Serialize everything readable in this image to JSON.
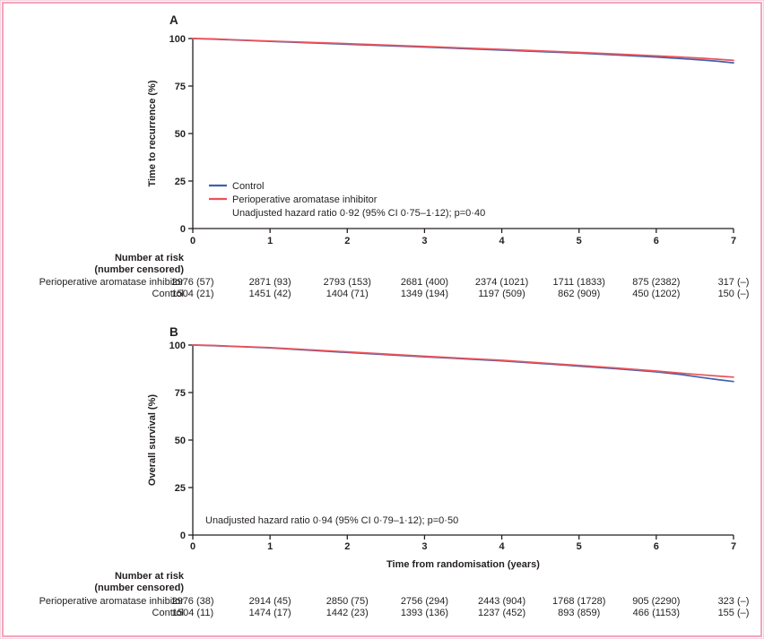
{
  "figure": {
    "frame_color": "#efa6bc",
    "frame_color_light": "#f8d3de",
    "ink_color": "#231f20",
    "background_color": "#ffffff",
    "risk_table_header_line1": "Number at risk",
    "risk_table_header_line2": "(number censored)"
  },
  "chart_data": [
    {
      "type": "line",
      "panel_label": "A",
      "ylabel": "Time to recurrence (%)",
      "xlabel": "",
      "ylim": [
        0,
        100
      ],
      "yticks": [
        0,
        25,
        50,
        75,
        100
      ],
      "xlim": [
        0,
        7
      ],
      "xticks": [
        0,
        1,
        2,
        3,
        4,
        5,
        6,
        7
      ],
      "grid": false,
      "show_legend": true,
      "legend_position": "inside-lower-left",
      "x": [
        0,
        0.25,
        1,
        2,
        3,
        4,
        5,
        5.5,
        6,
        6.3,
        6.6,
        6.8,
        7
      ],
      "series": [
        {
          "name": "Control",
          "color": "#3d63ad",
          "values": [
            100,
            99.7,
            98.5,
            97.0,
            95.5,
            93.9,
            92.3,
            91.3,
            90.3,
            89.5,
            88.7,
            88.0,
            87.2
          ]
        },
        {
          "name": "Perioperative aromatase inhibitor",
          "color": "#ed5158",
          "values": [
            100,
            99.8,
            98.7,
            97.3,
            95.8,
            94.3,
            92.7,
            91.8,
            90.9,
            90.3,
            89.6,
            89.1,
            88.5
          ]
        }
      ],
      "annotation": "Unadjusted hazard ratio 0·92 (95% CI 0·75–1·12); p=0·40",
      "risk_table_rows": [
        {
          "label": "Perioperative aromatase inhibitor",
          "values": [
            "2976 (57)",
            "2871 (93)",
            "2793 (153)",
            "2681 (400)",
            "2374 (1021)",
            "1711 (1833)",
            "875 (2382)",
            "317 (–)"
          ]
        },
        {
          "label": "Control",
          "values": [
            "1504 (21)",
            "1451 (42)",
            "1404 (71)",
            "1349 (194)",
            "1197 (509)",
            "862 (909)",
            "450 (1202)",
            "150 (–)"
          ]
        }
      ]
    },
    {
      "type": "line",
      "panel_label": "B",
      "ylabel": "Overall survival (%)",
      "xlabel": "Time from randomisation (years)",
      "ylim": [
        0,
        100
      ],
      "yticks": [
        0,
        25,
        50,
        75,
        100
      ],
      "xlim": [
        0,
        7
      ],
      "xticks": [
        0,
        1,
        2,
        3,
        4,
        5,
        6,
        7
      ],
      "grid": false,
      "show_legend": false,
      "legend_position": "none",
      "x": [
        0,
        0.25,
        1,
        2,
        3,
        4,
        5,
        5.5,
        6,
        6.3,
        6.6,
        6.8,
        7
      ],
      "series": [
        {
          "name": "Control",
          "color": "#3d63ad",
          "values": [
            100,
            99.7,
            98.5,
            96.1,
            93.8,
            91.7,
            88.9,
            87.5,
            85.9,
            84.6,
            82.9,
            81.8,
            80.8
          ]
        },
        {
          "name": "Perioperative aromatase inhibitor",
          "color": "#ed5158",
          "values": [
            100,
            99.8,
            98.7,
            96.4,
            94.1,
            92.0,
            89.3,
            87.9,
            86.3,
            85.3,
            84.3,
            83.7,
            83.1
          ]
        }
      ],
      "annotation": "Unadjusted hazard ratio 0·94 (95% CI 0·79–1·12); p=0·50",
      "risk_table_rows": [
        {
          "label": "Perioperative aromatase inhibitor",
          "values": [
            "2976 (38)",
            "2914 (45)",
            "2850 (75)",
            "2756 (294)",
            "2443 (904)",
            "1768 (1728)",
            "905 (2290)",
            "323 (–)"
          ]
        },
        {
          "label": "Control",
          "values": [
            "1504 (11)",
            "1474 (17)",
            "1442 (23)",
            "1393 (136)",
            "1237 (452)",
            "893 (859)",
            "466 (1153)",
            "155 (–)"
          ]
        }
      ]
    }
  ]
}
